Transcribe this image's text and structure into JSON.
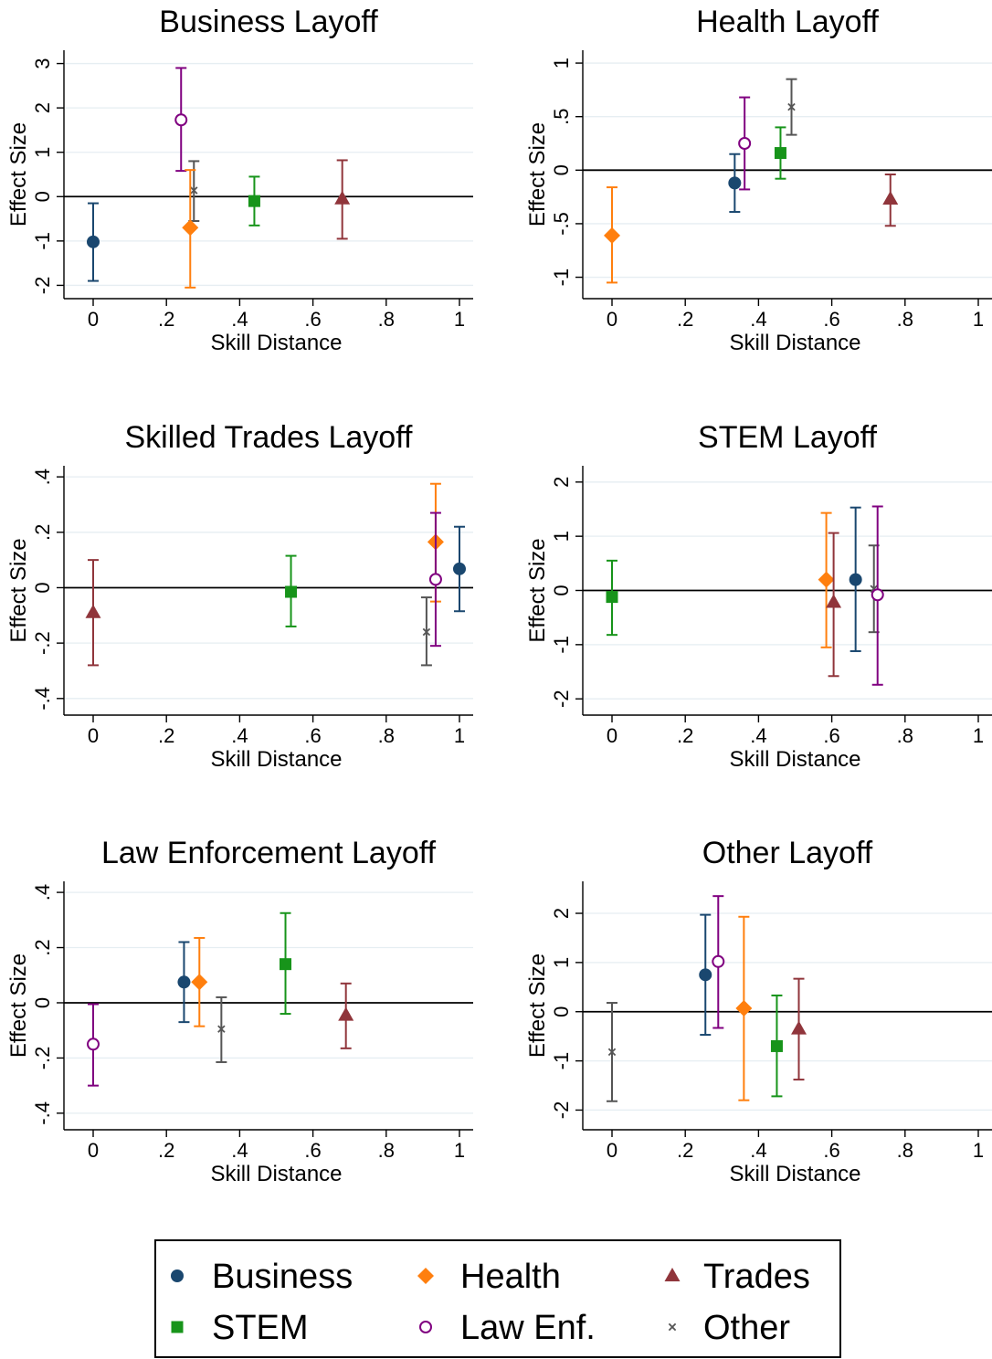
{
  "groups": [
    {
      "name": "Business",
      "color": "#1a476f",
      "marker": "circle"
    },
    {
      "name": "Health",
      "color": "#ff7f0e",
      "marker": "diamond"
    },
    {
      "name": "Trades",
      "color": "#90353b",
      "marker": "triangle"
    },
    {
      "name": "STEM",
      "color": "#17941a",
      "marker": "square"
    },
    {
      "name": "Law Enf.",
      "color": "#800080",
      "marker": "hollow-circle"
    },
    {
      "name": "Other",
      "color": "#555555",
      "marker": "x"
    }
  ],
  "chart_data": [
    {
      "type": "scatter",
      "title": "Business Layoff",
      "xlabel": "Skill Distance",
      "ylabel": "Effect Size",
      "xlim": [
        0,
        1
      ],
      "ylim": [
        -2.3,
        3.3
      ],
      "xticks": [
        0,
        0.2,
        0.4,
        0.6,
        0.8,
        1
      ],
      "xtick_labels": [
        "0",
        ".2",
        ".4",
        ".6",
        ".8",
        "1"
      ],
      "yticks": [
        -2,
        -1,
        0,
        1,
        2,
        3
      ],
      "ytick_labels": [
        "-2",
        "-1",
        "0",
        "1",
        "2",
        "3"
      ],
      "points": [
        {
          "group": "Business",
          "x": 0.0,
          "y": -1.02,
          "lo": -1.9,
          "hi": -0.15
        },
        {
          "group": "Law Enf.",
          "x": 0.24,
          "y": 1.73,
          "lo": 0.58,
          "hi": 2.9
        },
        {
          "group": "Other",
          "x": 0.275,
          "y": 0.14,
          "lo": -0.55,
          "hi": 0.8
        },
        {
          "group": "Health",
          "x": 0.265,
          "y": -0.7,
          "lo": -2.05,
          "hi": 0.6
        },
        {
          "group": "STEM",
          "x": 0.44,
          "y": -0.1,
          "lo": -0.65,
          "hi": 0.45
        },
        {
          "group": "Trades",
          "x": 0.68,
          "y": -0.05,
          "lo": -0.95,
          "hi": 0.82
        }
      ]
    },
    {
      "type": "scatter",
      "title": "Health Layoff",
      "xlabel": "Skill Distance",
      "ylabel": "Effect Size",
      "xlim": [
        0,
        1
      ],
      "ylim": [
        -1.2,
        1.12
      ],
      "xticks": [
        0,
        0.2,
        0.4,
        0.6,
        0.8,
        1
      ],
      "xtick_labels": [
        "0",
        ".2",
        ".4",
        ".6",
        ".8",
        "1"
      ],
      "yticks": [
        -1,
        -0.5,
        0,
        0.5,
        1
      ],
      "ytick_labels": [
        "-1",
        "-.5",
        "0",
        ".5",
        "1"
      ],
      "points": [
        {
          "group": "Health",
          "x": 0.0,
          "y": -0.61,
          "lo": -1.05,
          "hi": -0.16
        },
        {
          "group": "Business",
          "x": 0.335,
          "y": -0.12,
          "lo": -0.39,
          "hi": 0.15
        },
        {
          "group": "Law Enf.",
          "x": 0.362,
          "y": 0.25,
          "lo": -0.18,
          "hi": 0.68
        },
        {
          "group": "STEM",
          "x": 0.46,
          "y": 0.16,
          "lo": -0.08,
          "hi": 0.4
        },
        {
          "group": "Other",
          "x": 0.49,
          "y": 0.59,
          "lo": 0.33,
          "hi": 0.85
        },
        {
          "group": "Trades",
          "x": 0.76,
          "y": -0.27,
          "lo": -0.52,
          "hi": -0.04
        }
      ]
    },
    {
      "type": "scatter",
      "title": "Skilled Trades Layoff",
      "xlabel": "Skill Distance",
      "ylabel": "Effect Size",
      "xlim": [
        0,
        1
      ],
      "ylim": [
        -0.46,
        0.44
      ],
      "xticks": [
        0,
        0.2,
        0.4,
        0.6,
        0.8,
        1
      ],
      "xtick_labels": [
        "0",
        ".2",
        ".4",
        ".6",
        ".8",
        "1"
      ],
      "yticks": [
        -0.4,
        -0.2,
        0,
        0.2,
        0.4
      ],
      "ytick_labels": [
        "-.4",
        "-.2",
        "0",
        ".2",
        ".4"
      ],
      "points": [
        {
          "group": "Trades",
          "x": 0.0,
          "y": -0.09,
          "lo": -0.28,
          "hi": 0.1
        },
        {
          "group": "STEM",
          "x": 0.54,
          "y": -0.015,
          "lo": -0.14,
          "hi": 0.115
        },
        {
          "group": "Other",
          "x": 0.91,
          "y": -0.16,
          "lo": -0.28,
          "hi": -0.035
        },
        {
          "group": "Health",
          "x": 0.935,
          "y": 0.165,
          "lo": -0.05,
          "hi": 0.375
        },
        {
          "group": "Law Enf.",
          "x": 0.935,
          "y": 0.03,
          "lo": -0.21,
          "hi": 0.27
        },
        {
          "group": "Business",
          "x": 1.0,
          "y": 0.068,
          "lo": -0.085,
          "hi": 0.22
        }
      ]
    },
    {
      "type": "scatter",
      "title": "STEM Layoff",
      "xlabel": "Skill Distance",
      "ylabel": "Effect Size",
      "xlim": [
        0,
        1
      ],
      "ylim": [
        -2.3,
        2.3
      ],
      "xticks": [
        0,
        0.2,
        0.4,
        0.6,
        0.8,
        1
      ],
      "xtick_labels": [
        "0",
        ".2",
        ".4",
        ".6",
        ".8",
        "1"
      ],
      "yticks": [
        -2,
        -1,
        0,
        1,
        2
      ],
      "ytick_labels": [
        "-2",
        "-1",
        "0",
        "1",
        "2"
      ],
      "points": [
        {
          "group": "STEM",
          "x": 0.0,
          "y": -0.12,
          "lo": -0.82,
          "hi": 0.55
        },
        {
          "group": "Health",
          "x": 0.585,
          "y": 0.2,
          "lo": -1.05,
          "hi": 1.43
        },
        {
          "group": "Trades",
          "x": 0.605,
          "y": -0.22,
          "lo": -1.58,
          "hi": 1.06
        },
        {
          "group": "Business",
          "x": 0.665,
          "y": 0.2,
          "lo": -1.12,
          "hi": 1.53
        },
        {
          "group": "Other",
          "x": 0.715,
          "y": 0.03,
          "lo": -0.77,
          "hi": 0.83
        },
        {
          "group": "Law Enf.",
          "x": 0.725,
          "y": -0.08,
          "lo": -1.74,
          "hi": 1.55
        }
      ]
    },
    {
      "type": "scatter",
      "title": "Law Enforcement Layoff",
      "xlabel": "Skill Distance",
      "ylabel": "Effect Size",
      "xlim": [
        0,
        1
      ],
      "ylim": [
        -0.46,
        0.44
      ],
      "xticks": [
        0,
        0.2,
        0.4,
        0.6,
        0.8,
        1
      ],
      "xtick_labels": [
        "0",
        ".2",
        ".4",
        ".6",
        ".8",
        "1"
      ],
      "yticks": [
        -0.4,
        -0.2,
        0,
        0.2,
        0.4
      ],
      "ytick_labels": [
        "-.4",
        "-.2",
        "0",
        ".2",
        ".4"
      ],
      "points": [
        {
          "group": "Law Enf.",
          "x": 0.0,
          "y": -0.15,
          "lo": -0.3,
          "hi": -0.005
        },
        {
          "group": "Business",
          "x": 0.248,
          "y": 0.075,
          "lo": -0.07,
          "hi": 0.22
        },
        {
          "group": "Health",
          "x": 0.29,
          "y": 0.075,
          "lo": -0.085,
          "hi": 0.235
        },
        {
          "group": "Other",
          "x": 0.35,
          "y": -0.095,
          "lo": -0.215,
          "hi": 0.02
        },
        {
          "group": "STEM",
          "x": 0.525,
          "y": 0.14,
          "lo": -0.04,
          "hi": 0.325
        },
        {
          "group": "Trades",
          "x": 0.69,
          "y": -0.045,
          "lo": -0.165,
          "hi": 0.07
        }
      ]
    },
    {
      "type": "scatter",
      "title": "Other Layoff",
      "xlabel": "Skill Distance",
      "ylabel": "Effect Size",
      "xlim": [
        0,
        1
      ],
      "ylim": [
        -2.4,
        2.65
      ],
      "xticks": [
        0,
        0.2,
        0.4,
        0.6,
        0.8,
        1
      ],
      "xtick_labels": [
        "0",
        ".2",
        ".4",
        ".6",
        ".8",
        "1"
      ],
      "yticks": [
        -2,
        -1,
        0,
        1,
        2
      ],
      "ytick_labels": [
        "-2",
        "-1",
        "0",
        "1",
        "2"
      ],
      "points": [
        {
          "group": "Other",
          "x": 0.0,
          "y": -0.82,
          "lo": -1.82,
          "hi": 0.18
        },
        {
          "group": "Business",
          "x": 0.255,
          "y": 0.75,
          "lo": -0.47,
          "hi": 1.97
        },
        {
          "group": "Law Enf.",
          "x": 0.29,
          "y": 1.02,
          "lo": -0.33,
          "hi": 2.35
        },
        {
          "group": "Health",
          "x": 0.36,
          "y": 0.07,
          "lo": -1.8,
          "hi": 1.93
        },
        {
          "group": "STEM",
          "x": 0.45,
          "y": -0.7,
          "lo": -1.72,
          "hi": 0.33
        },
        {
          "group": "Trades",
          "x": 0.51,
          "y": -0.35,
          "lo": -1.38,
          "hi": 0.67
        }
      ]
    }
  ]
}
